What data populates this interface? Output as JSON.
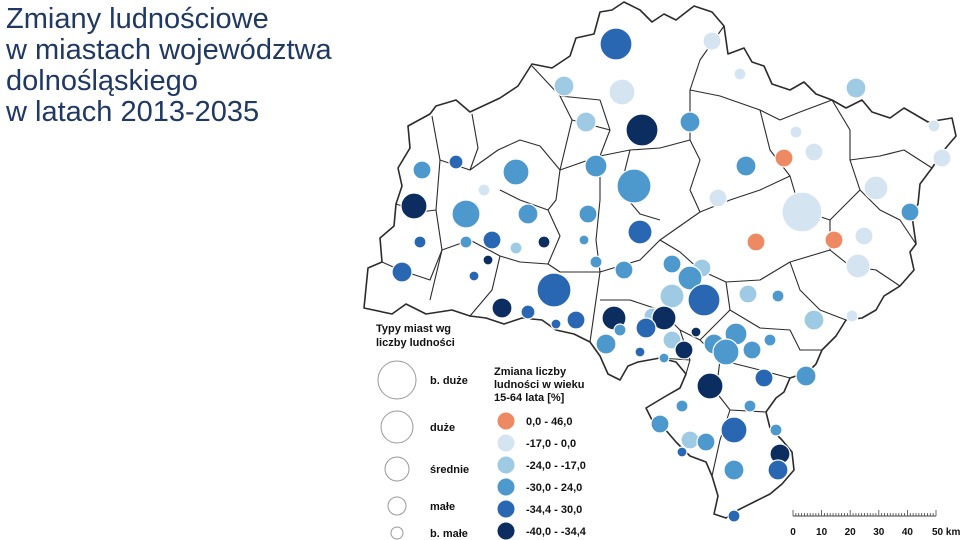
{
  "title": {
    "lines": [
      "Zmiany ludnościowe",
      "w miastach województwa",
      "dolnośląskiego",
      "w latach 2013-2035"
    ]
  },
  "colors": {
    "class_1": "#ee8a63",
    "class_2": "#d4e4f1",
    "class_3": "#9fcae3",
    "class_4": "#4d98cd",
    "class_5": "#2a67b3",
    "class_6": "#0c2d60",
    "border": "#2b2b2b",
    "size_outline": "#999999"
  },
  "legend_size": {
    "heading": [
      "Typy miast wg",
      "liczby ludności"
    ],
    "items": [
      "b. duże",
      "duże",
      "średnie",
      "małe",
      "b. małe"
    ]
  },
  "legend_change": {
    "heading": [
      "Zmiana liczby",
      "ludności w wieku",
      "15-64 lata [%]"
    ],
    "items": [
      {
        "label": "0,0 - 46,0",
        "color": "#ee8a63"
      },
      {
        "label": "-17,0 - 0,0",
        "color": "#d4e4f1"
      },
      {
        "label": "-24,0 - -17,0",
        "color": "#9fcae3"
      },
      {
        "label": "-30,0 - 24,0",
        "color": "#4d98cd"
      },
      {
        "label": "-34,4 - 30,0",
        "color": "#2a67b3"
      },
      {
        "label": "-40,0 - -34,4",
        "color": "#0c2d60"
      }
    ]
  },
  "scale_bar": {
    "ticks": [
      "0",
      "10",
      "20",
      "30",
      "40",
      "50 km"
    ]
  }
}
